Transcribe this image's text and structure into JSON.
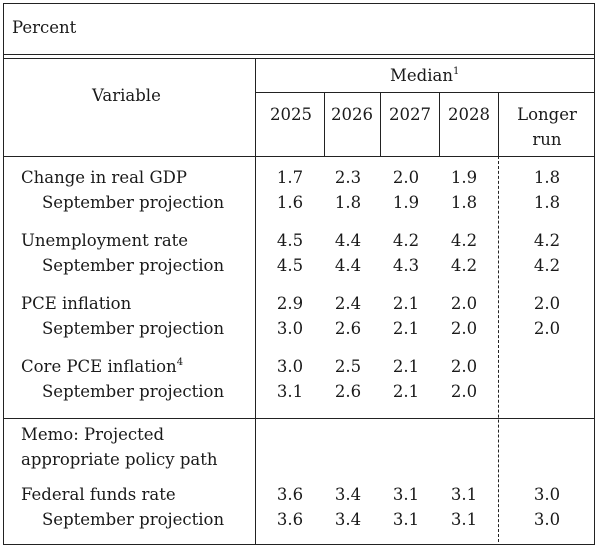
{
  "unit_label": "Percent",
  "header": {
    "variable": "Variable",
    "median": "Median",
    "median_sup": "1",
    "years": [
      "2025",
      "2026",
      "2027",
      "2028"
    ],
    "longer_run": [
      "Longer",
      "run"
    ]
  },
  "rows": [
    {
      "label": "Change in real GDP",
      "sup": "",
      "values": [
        "1.7",
        "2.3",
        "2.0",
        "1.9",
        "1.8"
      ]
    },
    {
      "label": "September projection",
      "values": [
        "1.6",
        "1.8",
        "1.9",
        "1.8",
        "1.8"
      ]
    },
    {
      "label": "Unemployment rate",
      "sup": "",
      "values": [
        "4.5",
        "4.4",
        "4.2",
        "4.2",
        "4.2"
      ]
    },
    {
      "label": "September projection",
      "values": [
        "4.5",
        "4.4",
        "4.3",
        "4.2",
        "4.2"
      ]
    },
    {
      "label": "PCE inflation",
      "sup": "",
      "values": [
        "2.9",
        "2.4",
        "2.1",
        "2.0",
        "2.0"
      ]
    },
    {
      "label": "September projection",
      "values": [
        "3.0",
        "2.6",
        "2.1",
        "2.0",
        "2.0"
      ]
    },
    {
      "label": "Core PCE inflation",
      "sup": "4",
      "values": [
        "3.0",
        "2.5",
        "2.1",
        "2.0",
        ""
      ]
    },
    {
      "label": "September projection",
      "values": [
        "3.1",
        "2.6",
        "2.1",
        "2.0",
        ""
      ]
    }
  ],
  "memo": [
    "Memo: Projected",
    "appropriate policy path"
  ],
  "ffr_rows": [
    {
      "label": "Federal funds rate",
      "values": [
        "3.6",
        "3.4",
        "3.1",
        "3.1",
        "3.0"
      ]
    },
    {
      "label": "September projection",
      "values": [
        "3.6",
        "3.4",
        "3.1",
        "3.1",
        "3.0"
      ]
    }
  ]
}
